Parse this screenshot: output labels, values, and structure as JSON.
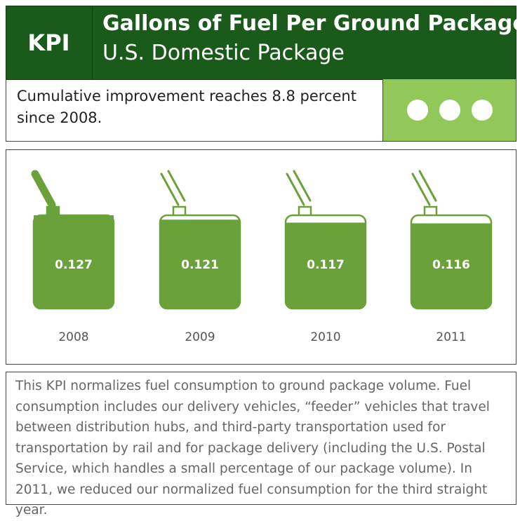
{
  "header": {
    "badge": "KPI",
    "title": "Gallons of Fuel Per Ground Package",
    "subtitle": "U.S. Domestic Package"
  },
  "summary": "Cumulative improvement reaches 8.8 percent since 2008.",
  "chart_data": {
    "type": "bar",
    "categories": [
      "2008",
      "2009",
      "2010",
      "2011"
    ],
    "values": [
      0.127,
      0.121,
      0.117,
      0.116
    ],
    "color": "#6aa13a"
  },
  "description": "This KPI normalizes fuel consumption to ground package volume. Fuel consumption includes our delivery vehicles, “feeder” vehicles that travel between distribution hubs, and third-party transportation used for transportation by rail and for package delivery (including the U.S. Postal Service, which handles a small percentage of our package volume). In 2011, we reduced our normalized fuel consumption for the third straight year."
}
